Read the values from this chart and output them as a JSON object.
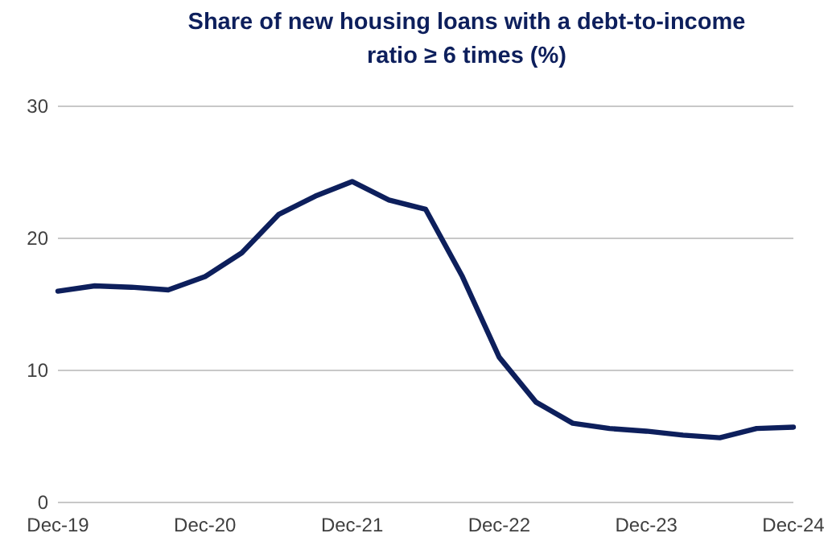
{
  "chart_data": {
    "type": "line",
    "title": "Share of new housing loans with a debt-to-income ratio ≥ 6 times (%)",
    "categories": [
      "Dec-19",
      null,
      null,
      null,
      "Dec-20",
      null,
      null,
      null,
      "Dec-21",
      null,
      null,
      null,
      "Dec-22",
      null,
      null,
      null,
      "Dec-23",
      null,
      null,
      null,
      "Dec-24"
    ],
    "series": [
      {
        "color": "#0d1f5c",
        "values": [
          16.0,
          16.4,
          16.3,
          16.1,
          17.1,
          18.9,
          21.8,
          23.2,
          24.3,
          22.9,
          22.2,
          17.1,
          11.0,
          7.6,
          6.0,
          5.6,
          5.4,
          5.1,
          4.9,
          5.6,
          5.7
        ]
      }
    ],
    "ylim": [
      0,
      30
    ],
    "yticks": [
      0,
      10,
      20,
      30
    ],
    "grid": "y",
    "marker": "none",
    "line_style": "solid"
  }
}
